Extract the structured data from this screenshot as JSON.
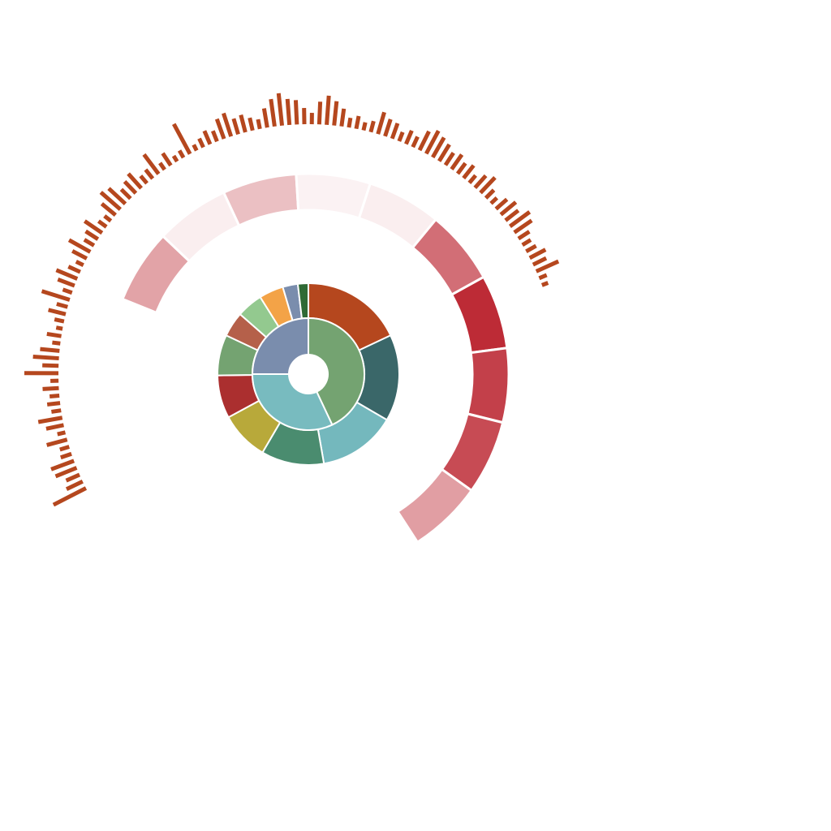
{
  "chart_data": {
    "type": "sunburst",
    "title": "",
    "inner_ring": {
      "colors": [
        "#74a371",
        "#78bbbf",
        "#7a8dad"
      ],
      "values": [
        43,
        32,
        25
      ]
    },
    "middle_ring": {
      "colors": [
        "#b5471e",
        "#3a6769",
        "#74b8bd",
        "#4a8c6f",
        "#b8a93a",
        "#ab2f2f",
        "#74a371",
        "#b5604a",
        "#93c98f",
        "#f3a347",
        "#7a8dad",
        "#2f6a35"
      ],
      "values": [
        17.4,
        14.9,
        13.4,
        10.8,
        8.4,
        7.4,
        7.0,
        4.3,
        4.5,
        4.2,
        2.6,
        1.8
      ]
    },
    "heat_ring": {
      "base_color": "#bb2530",
      "arc_start_deg": -68,
      "arc_end_deg": 147,
      "values": [
        0.4,
        0.04,
        0.26,
        0.02,
        0.04,
        0.65,
        0.97,
        0.87,
        0.82,
        0.42
      ]
    },
    "spike_ring": {
      "color": "#b5471e",
      "arc_start_deg": -118,
      "arc_end_deg": 70,
      "values": [
        45,
        22,
        18,
        28,
        30,
        14,
        12,
        26,
        10,
        22,
        30,
        12,
        16,
        12,
        20,
        10,
        42,
        20,
        32,
        24,
        10,
        18,
        8,
        12,
        22,
        14,
        36,
        12,
        22,
        28,
        16,
        10,
        20,
        30,
        14,
        18,
        26,
        12,
        10,
        22,
        32,
        28,
        16,
        20,
        24,
        12,
        14,
        30,
        10,
        18,
        8,
        10,
        42,
        8,
        12,
        18,
        14,
        26,
        30,
        20,
        22,
        16,
        12,
        24,
        34,
        40,
        32,
        30,
        20,
        14,
        28,
        36,
        30,
        22,
        12,
        16,
        10,
        14,
        28,
        22,
        20,
        12,
        18,
        14,
        26,
        32,
        28,
        24,
        18,
        22,
        16,
        20,
        12,
        20,
        26,
        14,
        10,
        18,
        24,
        20,
        30,
        26,
        16,
        12,
        14,
        22,
        18,
        30,
        10,
        8
      ]
    }
  }
}
